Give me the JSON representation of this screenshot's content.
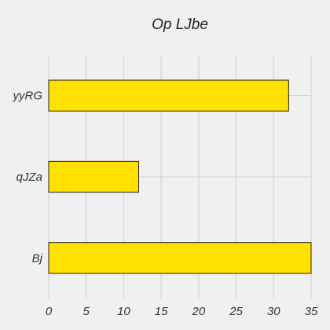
{
  "chart_data": {
    "type": "bar",
    "orientation": "horizontal",
    "title": "Op LJbe",
    "xlabel": "",
    "ylabel": "",
    "categories": [
      "Bj",
      "qJZa",
      "yyRG"
    ],
    "values": [
      35,
      12,
      32
    ],
    "xlim": [
      0,
      35
    ],
    "xticks": [
      0,
      5,
      10,
      15,
      20,
      25,
      30,
      35
    ],
    "grid": true,
    "bar_color": "#ffe100"
  }
}
